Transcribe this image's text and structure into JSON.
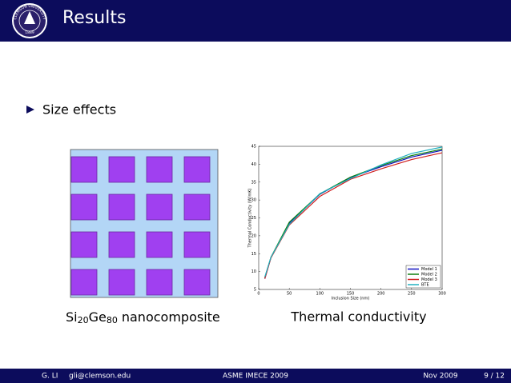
{
  "header": {
    "title": "Results",
    "logo": {
      "name": "CLEMSON UNIVERSITY",
      "year": "1889"
    }
  },
  "bullets": [
    "Size effects"
  ],
  "figures": [
    {
      "caption": [
        "Si",
        "20",
        "Ge",
        "80",
        "nanocomposite"
      ]
    },
    {
      "caption": "Thermal conductivity",
      "chart": {
        "type": "line",
        "xlabel": "Inclusion Size (nm)",
        "ylabel": "Thermal Conductivity (W/mK)",
        "x": [
          10,
          20,
          50,
          100,
          150,
          200,
          250,
          300
        ],
        "xlim": [
          0,
          300
        ],
        "xticks": [
          0,
          50,
          100,
          150,
          200,
          250,
          300
        ],
        "ylim": [
          5,
          45
        ],
        "yticks": [
          5,
          10,
          15,
          20,
          25,
          30,
          35,
          40,
          45
        ],
        "legend": "lower right",
        "series": [
          {
            "name": "Model 1",
            "color": "#1010c0",
            "values": [
              8,
              13.9,
              23.5,
              31.6,
              36.3,
              39.3,
              42,
              43.9
            ]
          },
          {
            "name": "Model 2",
            "color": "#108010",
            "values": [
              8.2,
              14,
              23.8,
              31.7,
              36.4,
              39.6,
              42.4,
              44.2
            ]
          },
          {
            "name": "Model 3",
            "color": "#d02020",
            "values": [
              8,
              13.8,
              23,
              31,
              35.8,
              38.7,
              41.3,
              43.2
            ]
          },
          {
            "name": "BTE",
            "color": "#20b0c0",
            "values": [
              8.5,
              14,
              23.2,
              31.8,
              36,
              39.8,
              43,
              44.8
            ]
          }
        ]
      }
    }
  ],
  "footer": {
    "author": "G. LI",
    "email": "gli@clemson.edu",
    "event": "ASME IMECE 2009",
    "date": "Nov 2009",
    "page": "9 / 12"
  }
}
